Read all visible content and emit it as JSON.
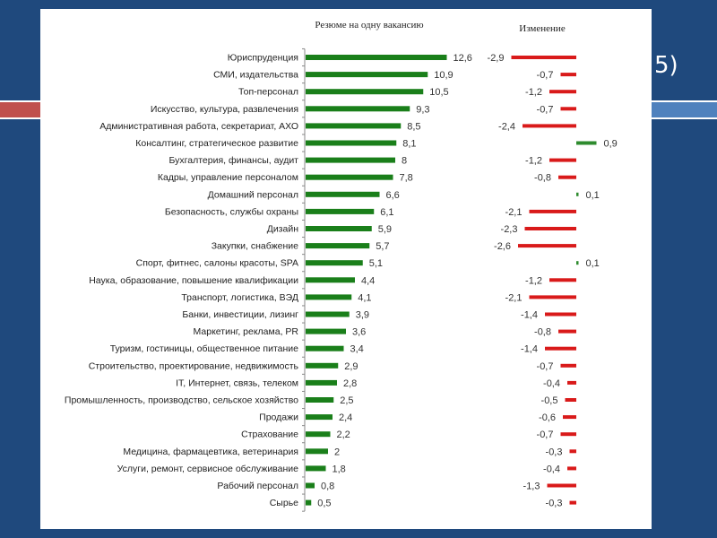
{
  "slide": {
    "title_fragment": "5)",
    "colors": {
      "background": "#1f497d",
      "accent_red": "#c0504d",
      "accent_blue": "#4f81bd"
    }
  },
  "chart_data": {
    "type": "bar",
    "orientation": "horizontal",
    "categories": [
      "Юриспруденция",
      "СМИ, издательства",
      "Топ-персонал",
      "Искусство, культура, развлечения",
      "Административная работа, секретариат, АХО",
      "Консалтинг, стратегическое развитие",
      "Бухгалтерия, финансы, аудит",
      "Кадры, управление персоналом",
      "Домашний персонал",
      "Безопасность, службы охраны",
      "Дизайн",
      "Закупки, снабжение",
      "Спорт, фитнес, салоны красоты, SPA",
      "Наука, образование, повышение квалификации",
      "Транспорт, логистика, ВЭД",
      "Банки, инвестиции, лизинг",
      "Маркетинг, реклама, PR",
      "Туризм, гостиницы, общественное питание",
      "Строительство, проектирование, недвижимость",
      "IT, Интернет, связь, телеком",
      "Промышленность, производство, сельское хозяйство",
      "Продажи",
      "Страхование",
      "Медицина, фармацевтика, ветеринария",
      "Услуги, ремонт, сервисное обслуживание",
      "Рабочий персонал",
      "Сырье"
    ],
    "series": [
      {
        "name": "Резюме на одну вакансию",
        "color": "#1a7f1a",
        "values": [
          12.6,
          10.9,
          10.5,
          9.3,
          8.5,
          8.1,
          8,
          7.8,
          6.6,
          6.1,
          5.9,
          5.7,
          5.1,
          4.4,
          4.1,
          3.9,
          3.6,
          3.4,
          2.9,
          2.8,
          2.5,
          2.4,
          2.2,
          2,
          1.8,
          0.8,
          0.5
        ],
        "labels": [
          "12,6",
          "10,9",
          "10,5",
          "9,3",
          "8,5",
          "8,1",
          "8",
          "7,8",
          "6,6",
          "6,1",
          "5,9",
          "5,7",
          "5,1",
          "4,4",
          "4,1",
          "3,9",
          "3,6",
          "3,4",
          "2,9",
          "2,8",
          "2,5",
          "2,4",
          "2,2",
          "2",
          "1,8",
          "0,8",
          "0,5"
        ]
      },
      {
        "name": "Изменение",
        "color_negative": "#d91a1a",
        "color_positive": "#2e8b2e",
        "values": [
          -2.9,
          -0.7,
          -1.2,
          -0.7,
          -2.4,
          0.9,
          -1.2,
          -0.8,
          0.1,
          -2.1,
          -2.3,
          -2.6,
          0.1,
          -1.2,
          -2.1,
          -1.4,
          -0.8,
          -1.4,
          -0.7,
          -0.4,
          -0.5,
          -0.6,
          -0.7,
          -0.3,
          -0.4,
          -1.3,
          -0.3
        ],
        "labels": [
          "-2,9",
          "-0,7",
          "-1,2",
          "-0,7",
          "-2,4",
          "0,9",
          "-1,2",
          "-0,8",
          "0,1",
          "-2,1",
          "-2,3",
          "-2,6",
          "0,1",
          "-1,2",
          "-2,1",
          "-1,4",
          "-0,8",
          "-1,4",
          "-0,7",
          "-0,4",
          "-0,5",
          "-0,6",
          "-0,7",
          "-0,3",
          "-0,4",
          "-1,3",
          "-0,3"
        ]
      }
    ],
    "titles": {
      "resumes": "Резюме на одну вакансию",
      "change": "Изменение"
    },
    "xlim_resumes": [
      0,
      14
    ],
    "xlim_change": [
      -3,
      1
    ],
    "grid": false,
    "legend": "none"
  }
}
